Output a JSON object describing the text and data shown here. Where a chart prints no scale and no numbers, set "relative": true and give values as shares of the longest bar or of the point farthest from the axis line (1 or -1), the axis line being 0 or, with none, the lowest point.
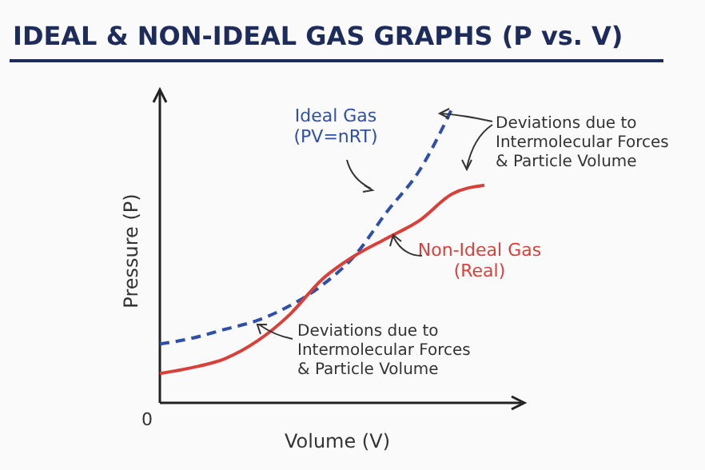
{
  "chart_data": {
    "type": "line",
    "title": "IDEAL & NON-IDEAL GAS GRAPHS (P vs. V)",
    "xlabel": "Volume (V)",
    "ylabel": "Pressure (P)",
    "relative": true,
    "categories": [
      null,
      null,
      null,
      null,
      null,
      null,
      null,
      null,
      null,
      null,
      null
    ],
    "series": [
      {
        "name": "Ideal Gas\n(PV=nRT)",
        "color": "#2f4fa8",
        "line_style": "dashed",
        "values": [
          0.2,
          0.22,
          0.25,
          0.28,
          0.33,
          0.4,
          0.5,
          0.65,
          0.79,
          1.0,
          null
        ]
      },
      {
        "name": "Non-Ideal Gas\n(Real)",
        "color": "#d9403a",
        "line_style": "solid",
        "values": [
          0.1,
          0.12,
          0.15,
          0.21,
          0.3,
          0.42,
          0.5,
          0.56,
          0.62,
          0.71,
          0.74
        ]
      }
    ],
    "annotations": [
      "0",
      "Deviations due to\nIntermolecular Forces\n& Particle Volume",
      "Deviations due to\nIntermolecular Forces\n& Particle Volume"
    ],
    "legend": false,
    "marker": "none"
  }
}
